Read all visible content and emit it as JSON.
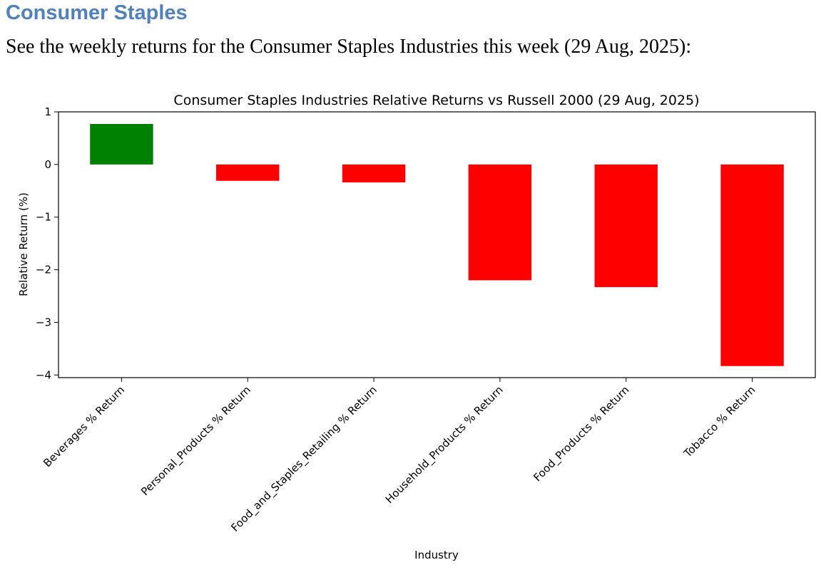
{
  "document": {
    "heading": "Consumer Staples",
    "intro": "See the weekly returns for the Consumer Staples Industries this week (29 Aug, 2025):"
  },
  "chart_data": {
    "type": "bar",
    "title": "Consumer Staples Industries Relative Returns vs Russell 2000 (29 Aug, 2025)",
    "xlabel": "Industry",
    "ylabel": "Relative Return (%)",
    "categories": [
      "Beverages % Return",
      "Personal_Products % Return",
      "Food_and_Staples_Retailing % Return",
      "Household_Products % Return",
      "Food_Products % Return",
      "Tobacco % Return"
    ],
    "values": [
      0.77,
      -0.31,
      -0.34,
      -2.2,
      -2.33,
      -3.83
    ],
    "ylim": [
      -4.05,
      1.0
    ],
    "yticks": [
      1,
      0,
      -1,
      -2,
      -3,
      -4
    ],
    "ytick_labels": [
      "1",
      "0",
      "−1",
      "−2",
      "−3",
      "−4"
    ],
    "positive_color": "#008000",
    "negative_color": "#ff0000",
    "grid": false,
    "legend": "none"
  }
}
